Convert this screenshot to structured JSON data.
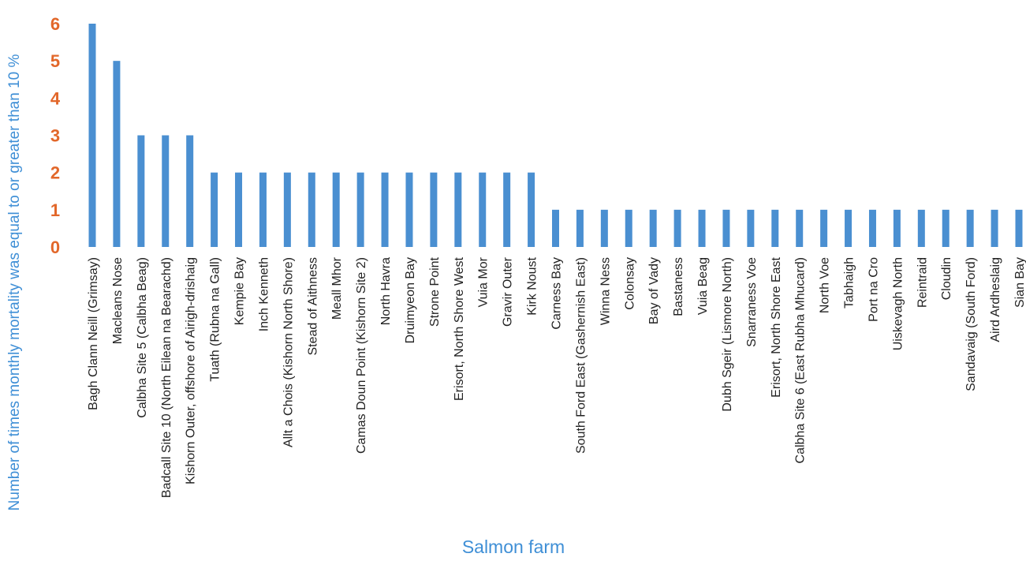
{
  "chart_data": {
    "type": "bar",
    "title": "",
    "xlabel": "Salmon farm",
    "ylabel": "Number of times monthly mortality was equal to or greater than 10 %",
    "ylim": [
      0,
      6
    ],
    "yticks": [
      "0",
      "1",
      "2",
      "3",
      "4",
      "5",
      "6"
    ],
    "grid": false,
    "legend": "none",
    "colors": {
      "bar": "#4a8fd1",
      "ytick": "#e2672a",
      "axis_label": "#3f8fd6",
      "xtick": "#222222"
    },
    "categories": [
      "Bagh Clann Neill (Grimsay)",
      "Macleans Nose",
      "Calbha Site 5 (Calbha Beag)",
      "Badcall Site 10 (North Eilean na Bearachd)",
      "Kishorn Outer, offshore of Airigh-drishaig",
      "Tuath (Rubna na Gall)",
      "Kempie Bay",
      "Inch Kenneth",
      "Allt a Chois  (Kishorn North Shore)",
      "Stead of Aithness",
      "Meall Mhor",
      "Camas Doun Point (Kishorn Site 2)",
      "North Havra",
      "Druimyeon Bay",
      "Strone Point",
      "Erisort, North Shore West",
      "Vuia Mor",
      "Gravir Outer",
      "Kirk Noust",
      "Carness Bay",
      "South Ford East (Gashernish East)",
      "Winna Ness",
      "Colonsay",
      "Bay of Vady",
      "Bastaness",
      "Vuia Beag",
      "Dubh Sgeir (Lismore  North)",
      "Snarraness Voe",
      "Erisort, North Shore East",
      "Calbha Site 6 (East Rubha Mhucard)",
      "North Voe",
      "Tabhaigh",
      "Port na Cro",
      "Uiskevagh North",
      "Reintraid",
      "Cloudin",
      "Sandavaig (South Ford)",
      "Aird Ardheslaig",
      "Sian Bay"
    ],
    "values": [
      6,
      5,
      3,
      3,
      3,
      2,
      2,
      2,
      2,
      2,
      2,
      2,
      2,
      2,
      2,
      2,
      2,
      2,
      2,
      1,
      1,
      1,
      1,
      1,
      1,
      1,
      1,
      1,
      1,
      1,
      1,
      1,
      1,
      1,
      1,
      1,
      1,
      1,
      1
    ]
  }
}
